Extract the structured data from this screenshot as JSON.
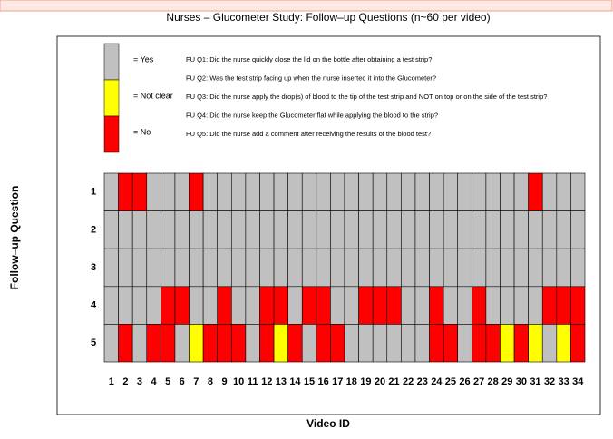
{
  "chart_data": {
    "type": "heatmap",
    "title": "Nurses – Glucometer Study: Follow–up Questions (n~60 per video)",
    "xlabel": "Video ID",
    "ylabel": "Follow–up Question",
    "x": [
      1,
      2,
      3,
      4,
      5,
      6,
      7,
      8,
      9,
      10,
      11,
      12,
      13,
      14,
      15,
      16,
      17,
      18,
      19,
      20,
      21,
      22,
      23,
      24,
      25,
      26,
      27,
      28,
      29,
      30,
      31,
      32,
      33,
      34
    ],
    "y": [
      1,
      2,
      3,
      4,
      5
    ],
    "legend": [
      {
        "label": "= Yes",
        "color": "#c0c0c0"
      },
      {
        "label": "= Not clear",
        "color": "#ffff00"
      },
      {
        "label": "= No",
        "color": "#ff0000"
      }
    ],
    "questions": [
      "FU Q1: Did the nurse quickly close the lid on the bottle after obtaining a test strip?",
      "FU Q2: Was the test strip facing up when the nurse inserted it into the Glucometer?",
      "FU Q3: Did the nurse apply the drop(s) of blood to the tip of the test strip and NOT on top or on the side of the test strip?",
      "FU Q4: Did the nurse keep the Glucometer flat while applying the blood to the strip?",
      "FU Q5: Did the nurse add a comment after receiving the results of the blood test?"
    ],
    "z": [
      [
        0,
        2,
        2,
        0,
        0,
        0,
        2,
        0,
        0,
        0,
        0,
        0,
        0,
        0,
        0,
        0,
        0,
        0,
        0,
        0,
        0,
        0,
        0,
        0,
        0,
        0,
        0,
        0,
        0,
        0,
        2,
        0,
        0,
        0
      ],
      [
        0,
        0,
        0,
        0,
        0,
        0,
        0,
        0,
        0,
        0,
        0,
        0,
        0,
        0,
        0,
        0,
        0,
        0,
        0,
        0,
        0,
        0,
        0,
        0,
        0,
        0,
        0,
        0,
        0,
        0,
        0,
        0,
        0,
        0
      ],
      [
        0,
        0,
        0,
        0,
        0,
        0,
        0,
        0,
        0,
        0,
        0,
        0,
        0,
        0,
        0,
        0,
        0,
        0,
        0,
        0,
        0,
        0,
        0,
        0,
        0,
        0,
        0,
        0,
        0,
        0,
        0,
        0,
        0,
        0
      ],
      [
        0,
        0,
        0,
        0,
        2,
        2,
        0,
        0,
        2,
        0,
        0,
        2,
        2,
        0,
        2,
        2,
        0,
        0,
        2,
        2,
        2,
        0,
        0,
        2,
        0,
        0,
        2,
        0,
        0,
        0,
        0,
        2,
        2,
        2
      ],
      [
        0,
        2,
        0,
        2,
        2,
        0,
        1,
        2,
        2,
        2,
        0,
        2,
        1,
        2,
        0,
        2,
        2,
        0,
        0,
        0,
        0,
        0,
        0,
        2,
        2,
        0,
        2,
        2,
        1,
        2,
        1,
        0,
        1,
        2
      ]
    ]
  }
}
